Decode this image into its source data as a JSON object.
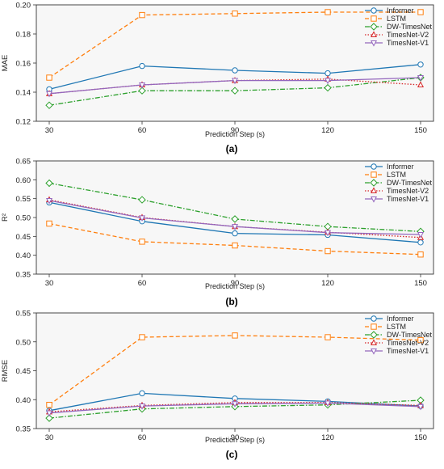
{
  "series_styles": [
    {
      "name": "Informer",
      "color": "#1f77b4",
      "dash": "",
      "marker": "circle"
    },
    {
      "name": "LSTM",
      "color": "#ff7f0e",
      "dash": "5,3",
      "marker": "square"
    },
    {
      "name": "DW-TimesNet",
      "color": "#2ca02c",
      "dash": "6,2,1.5,2",
      "marker": "diamond"
    },
    {
      "name": "TimesNet-V2",
      "color": "#d62728",
      "dash": "1.5,2",
      "marker": "triangle-up"
    },
    {
      "name": "TimesNet-V1",
      "color": "#9467bd",
      "dash": "",
      "marker": "triangle-down"
    }
  ],
  "chart_data": [
    {
      "type": "line",
      "caption": "(a)",
      "xlabel": "Prediction Step (s)",
      "ylabel": "MAE",
      "x": [
        30,
        60,
        90,
        120,
        150
      ],
      "xlim": [
        30,
        150
      ],
      "ylim": [
        0.12,
        0.2
      ],
      "yticks": [
        0.12,
        0.14,
        0.16,
        0.18,
        0.2
      ],
      "ytick_labels": [
        "0.12",
        "0.14",
        "0.16",
        "0.18",
        "0.20"
      ],
      "grid": false,
      "legend": "top-right",
      "series": [
        {
          "name": "Informer",
          "values": [
            0.142,
            0.158,
            0.155,
            0.153,
            0.159
          ]
        },
        {
          "name": "LSTM",
          "values": [
            0.15,
            0.193,
            0.194,
            0.195,
            0.195
          ]
        },
        {
          "name": "DW-TimesNet",
          "values": [
            0.131,
            0.141,
            0.141,
            0.143,
            0.15
          ]
        },
        {
          "name": "TimesNet-V2",
          "values": [
            0.139,
            0.145,
            0.148,
            0.149,
            0.145
          ]
        },
        {
          "name": "TimesNet-V1",
          "values": [
            0.139,
            0.145,
            0.148,
            0.148,
            0.15
          ]
        }
      ]
    },
    {
      "type": "line",
      "caption": "(b)",
      "xlabel": "Prediction Step (s)",
      "ylabel": "R²",
      "x": [
        30,
        60,
        90,
        120,
        150
      ],
      "xlim": [
        30,
        150
      ],
      "ylim": [
        0.35,
        0.65
      ],
      "yticks": [
        0.35,
        0.4,
        0.45,
        0.5,
        0.55,
        0.6,
        0.65
      ],
      "ytick_labels": [
        "0.35",
        "0.40",
        "0.45",
        "0.50",
        "0.55",
        "0.60",
        "0.65"
      ],
      "grid": false,
      "legend": "top-right",
      "series": [
        {
          "name": "Informer",
          "values": [
            0.54,
            0.49,
            0.458,
            0.454,
            0.434
          ]
        },
        {
          "name": "LSTM",
          "values": [
            0.484,
            0.436,
            0.426,
            0.411,
            0.402
          ]
        },
        {
          "name": "DW-TimesNet",
          "values": [
            0.591,
            0.547,
            0.496,
            0.476,
            0.463
          ]
        },
        {
          "name": "TimesNet-V2",
          "values": [
            0.547,
            0.5,
            0.476,
            0.461,
            0.447
          ]
        },
        {
          "name": "TimesNet-V1",
          "values": [
            0.545,
            0.499,
            0.476,
            0.46,
            0.455
          ]
        }
      ]
    },
    {
      "type": "line",
      "caption": "(c)",
      "xlabel": "Prediction Step (s)",
      "ylabel": "RMSE",
      "x": [
        30,
        60,
        90,
        120,
        150
      ],
      "xlim": [
        30,
        150
      ],
      "ylim": [
        0.35,
        0.55
      ],
      "yticks": [
        0.35,
        0.4,
        0.45,
        0.5,
        0.55
      ],
      "ytick_labels": [
        "0.35",
        "0.40",
        "0.45",
        "0.50",
        "0.55"
      ],
      "grid": false,
      "legend": "top-right",
      "series": [
        {
          "name": "Informer",
          "values": [
            0.381,
            0.411,
            0.402,
            0.397,
            0.389
          ]
        },
        {
          "name": "LSTM",
          "values": [
            0.391,
            0.508,
            0.511,
            0.508,
            0.503
          ]
        },
        {
          "name": "DW-TimesNet",
          "values": [
            0.368,
            0.384,
            0.388,
            0.391,
            0.399
          ]
        },
        {
          "name": "TimesNet-V2",
          "values": [
            0.379,
            0.39,
            0.395,
            0.395,
            0.39
          ]
        },
        {
          "name": "TimesNet-V1",
          "values": [
            0.377,
            0.389,
            0.393,
            0.394,
            0.388
          ]
        }
      ]
    }
  ]
}
